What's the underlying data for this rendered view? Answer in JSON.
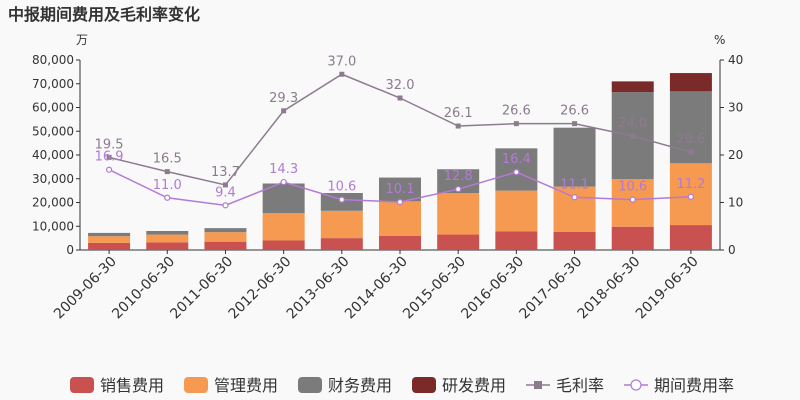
{
  "chart_data": {
    "type": "bar",
    "title": "中报期间费用及毛利率变化",
    "left_unit": "万",
    "right_unit": "%",
    "categories": [
      "2009-06-30",
      "2010-06-30",
      "2011-06-30",
      "2012-06-30",
      "2013-06-30",
      "2014-06-30",
      "2015-06-30",
      "2016-06-30",
      "2017-06-30",
      "2018-06-30",
      "2019-06-30"
    ],
    "ylim_left": [
      0,
      80000
    ],
    "yticks_left": [
      "0",
      "10,000",
      "20,000",
      "30,000",
      "40,000",
      "50,000",
      "60,000",
      "70,000",
      "80,000"
    ],
    "ylim_right": [
      0,
      40
    ],
    "yticks_right": [
      "0",
      "10",
      "20",
      "30",
      "40"
    ],
    "stacked_series": [
      {
        "name": "销售费用",
        "color": "#c9514f",
        "values": [
          3000,
          3200,
          3500,
          4000,
          5000,
          6000,
          6500,
          7800,
          7700,
          9800,
          10500
        ]
      },
      {
        "name": "管理费用",
        "color": "#f59a50",
        "values": [
          2800,
          3300,
          4000,
          11500,
          11500,
          14500,
          17500,
          17200,
          19000,
          20000,
          26000
        ]
      },
      {
        "name": "财务费用",
        "color": "#7b7b7b",
        "values": [
          1400,
          1500,
          1700,
          12500,
          7500,
          10000,
          10000,
          17800,
          24800,
          36700,
          30300
        ]
      },
      {
        "name": "研发费用",
        "color": "#7b2a2a",
        "values": [
          0,
          0,
          0,
          0,
          0,
          0,
          0,
          0,
          0,
          4500,
          7700
        ]
      }
    ],
    "line_series": [
      {
        "name": "毛利率",
        "color": "#8c7b8f",
        "marker": "square",
        "values": [
          19.5,
          16.5,
          13.7,
          29.3,
          37.0,
          32.0,
          26.1,
          26.6,
          26.6,
          24.0,
          20.6
        ],
        "labels": [
          "19.5",
          "16.5",
          "13.7",
          "29.3",
          "37.0",
          "32.0",
          "26.1",
          "26.6",
          "26.6",
          "24.0",
          "20.6"
        ]
      },
      {
        "name": "期间费用率",
        "color": "#b37ad6",
        "marker": "circle",
        "values": [
          16.9,
          11.0,
          9.4,
          14.3,
          10.6,
          10.1,
          12.8,
          16.4,
          11.1,
          10.6,
          11.2
        ],
        "labels": [
          "16.9",
          "11.0",
          "9.4",
          "14.3",
          "10.6",
          "10.1",
          "12.8",
          "16.4",
          "11.1",
          "10.6",
          "11.2"
        ]
      }
    ],
    "legend_position": "bottom",
    "grid": false
  }
}
